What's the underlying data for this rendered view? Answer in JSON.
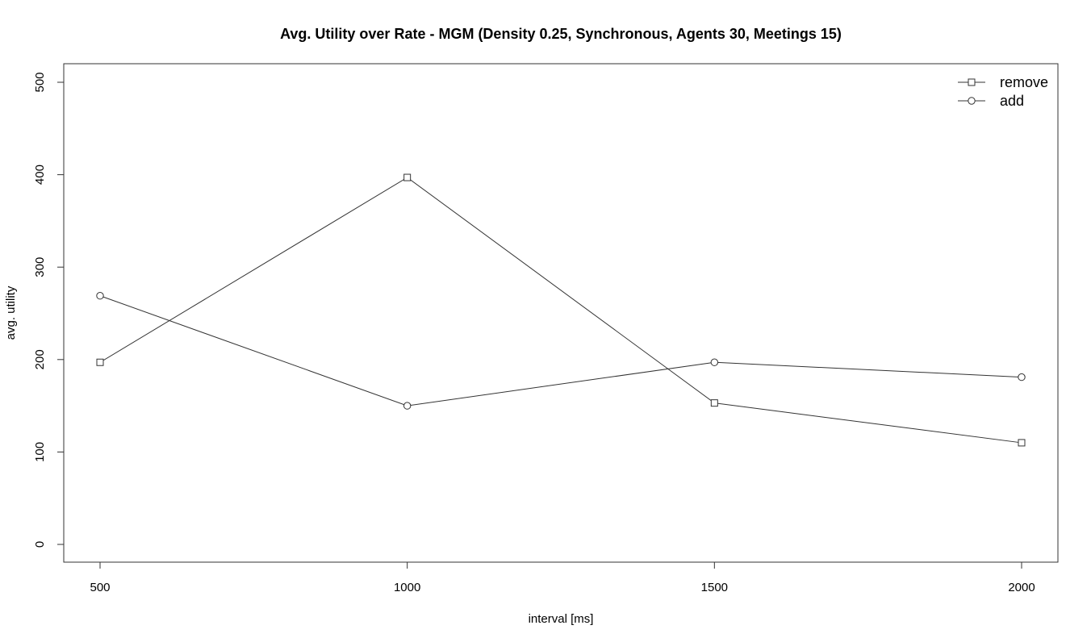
{
  "chart_data": {
    "type": "line",
    "title": "Avg. Utility over Rate - MGM (Density 0.25, Synchronous, Agents 30, Meetings 15)",
    "xlabel": "interval [ms]",
    "ylabel": "avg. utility",
    "x": [
      500,
      1000,
      1500,
      2000
    ],
    "x_tick_labels": [
      "500",
      "1000",
      "1500",
      "2000"
    ],
    "y_ticks": [
      0,
      100,
      200,
      300,
      400,
      500
    ],
    "y_tick_labels": [
      "0",
      "100",
      "200",
      "300",
      "400",
      "500"
    ],
    "ylim": [
      0,
      500
    ],
    "xlim": [
      500,
      2000
    ],
    "grid": false,
    "legend_position": "top-right",
    "series": [
      {
        "name": "remove",
        "marker": "square",
        "values": [
          197,
          397,
          153,
          110
        ]
      },
      {
        "name": "add",
        "marker": "circle",
        "values": [
          269,
          150,
          197,
          181
        ]
      }
    ]
  }
}
